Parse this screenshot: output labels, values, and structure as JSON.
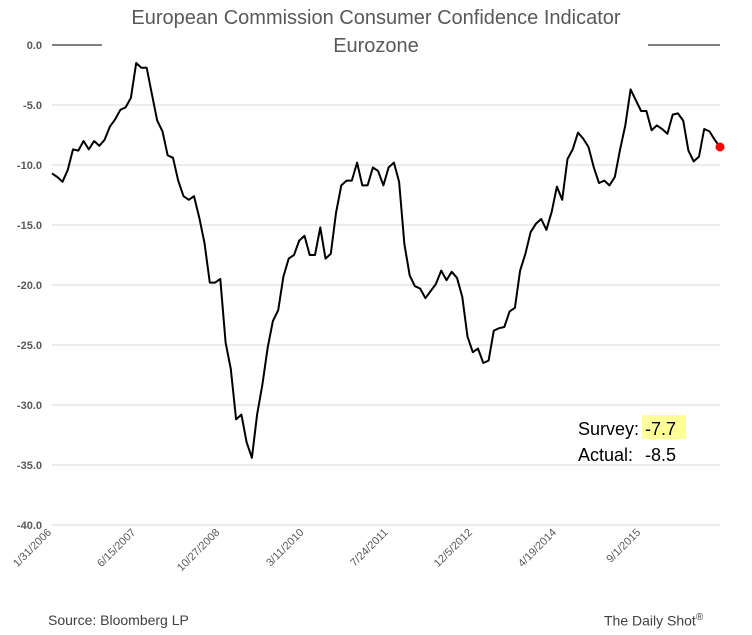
{
  "chart_data": {
    "type": "line",
    "title": "European Commission Consumer Confidence Indicator",
    "subtitle": "Eurozone",
    "xlabel": "",
    "ylabel": "",
    "ylim": [
      -40,
      0
    ],
    "yticks": [
      "0.0",
      "-5.0",
      "-10.0",
      "-15.0",
      "-20.0",
      "-25.0",
      "-30.0",
      "-35.0",
      "-40.0"
    ],
    "ytick_values": [
      0,
      -5,
      -10,
      -15,
      -20,
      -25,
      -30,
      -35,
      -40
    ],
    "xticks": [
      "1/31/2006",
      "6/15/2007",
      "10/27/2008",
      "3/11/2010",
      "7/24/2011",
      "12/5/2012",
      "4/19/2014",
      "9/1/2015"
    ],
    "grid": true,
    "legend": "none",
    "series": [
      {
        "color": "#000000",
        "values": [
          -10.7,
          -11.0,
          -11.4,
          -10.4,
          -8.7,
          -8.8,
          -8.0,
          -8.7,
          -8.0,
          -8.4,
          -7.9,
          -6.8,
          -6.2,
          -5.4,
          -5.2,
          -4.4,
          -1.5,
          -1.9,
          -1.9,
          -4.1,
          -6.3,
          -7.2,
          -9.2,
          -9.4,
          -11.3,
          -12.6,
          -12.9,
          -12.6,
          -14.4,
          -16.5,
          -19.8,
          -19.8,
          -19.5,
          -24.8,
          -27.0,
          -31.2,
          -30.8,
          -33.1,
          -34.4,
          -30.8,
          -28.3,
          -25.2,
          -23.0,
          -22.1,
          -19.3,
          -17.8,
          -17.5,
          -16.3,
          -15.9,
          -17.5,
          -17.5,
          -15.2,
          -17.8,
          -17.4,
          -14.0,
          -11.7,
          -11.3,
          -11.3,
          -9.8,
          -11.7,
          -11.7,
          -10.2,
          -10.5,
          -11.7,
          -10.2,
          -9.8,
          -11.4,
          -16.6,
          -19.2,
          -20.1,
          -20.3,
          -21.1,
          -20.5,
          -19.9,
          -18.8,
          -19.6,
          -18.9,
          -19.4,
          -21.0,
          -24.3,
          -25.6,
          -25.3,
          -26.5,
          -26.3,
          -23.8,
          -23.6,
          -23.5,
          -22.2,
          -21.9,
          -18.8,
          -17.4,
          -15.6,
          -14.9,
          -14.5,
          -15.4,
          -13.9,
          -11.8,
          -12.9,
          -9.5,
          -8.7,
          -7.3,
          -7.8,
          -8.5,
          -10.2,
          -11.5,
          -11.3,
          -11.7,
          -11.0,
          -8.7,
          -6.7,
          -3.7,
          -4.6,
          -5.5,
          -5.5,
          -7.1,
          -6.7,
          -7.0,
          -7.4,
          -5.8,
          -5.7,
          -6.3,
          -8.8,
          -9.7,
          -9.3,
          -7.0,
          -7.2,
          -7.9,
          -8.5
        ]
      }
    ],
    "highlight_last_point_color": "#ff0000"
  },
  "annotations": {
    "survey_label": "Survey:",
    "survey_value": "-7.7",
    "actual_label": "Actual:",
    "actual_value": "-8.5",
    "highlight_color": "#ffff99"
  },
  "footer": {
    "source": "Source: Bloomberg LP",
    "brand": "The Daily Shot",
    "brand_mark": "®"
  }
}
